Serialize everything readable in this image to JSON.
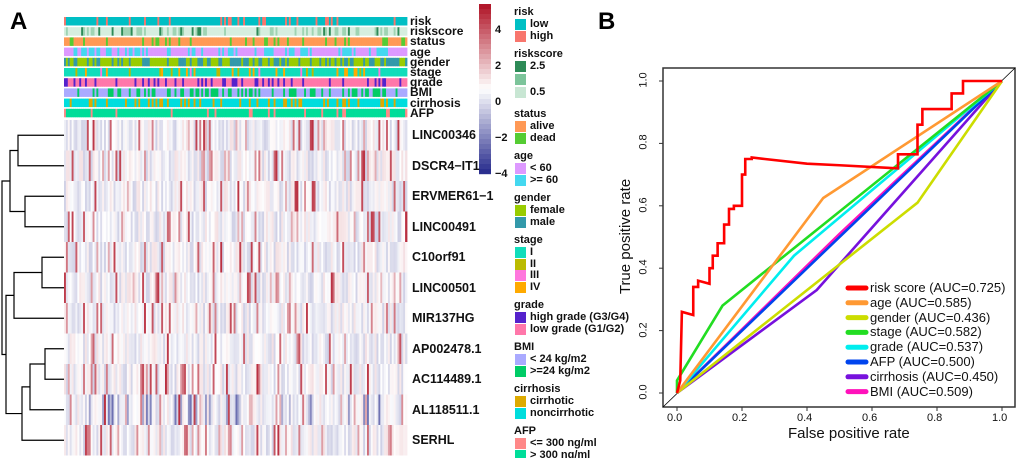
{
  "panels": {
    "a": "A",
    "b": "B"
  },
  "chart_data": [
    {
      "type": "heatmap",
      "annotation_tracks": [
        "risk",
        "riskscore",
        "status",
        "age",
        "gender",
        "stage",
        "grade",
        "BMI",
        "cirrhosis",
        "AFP"
      ],
      "rows": [
        "LINC00346",
        "DSCR4−IT1",
        "ERVMER61−1",
        "LINC00491",
        "C10orf91",
        "LINC00501",
        "MIR137HG",
        "AP002478.1",
        "AC114489.1",
        "AL118511.1",
        "SERHL"
      ],
      "color_scale": {
        "range": [
          -5,
          5
        ],
        "ticks": [
          "4",
          "2",
          "0",
          "−2",
          "−4"
        ],
        "low": "#2b2f8f",
        "mid": "#ffffff",
        "high": "#b2182b"
      },
      "legend": [
        {
          "title": "risk",
          "items": [
            {
              "label": "low",
              "color": "#00bfc4"
            },
            {
              "label": "high",
              "color": "#f8766d"
            }
          ]
        },
        {
          "title": "riskscore",
          "items": [
            {
              "label": "2.5",
              "color": "#2e8b57"
            },
            {
              "label": "",
              "color": "#7cc49a"
            },
            {
              "label": "0.5",
              "color": "#c8e6d3"
            }
          ]
        },
        {
          "title": "status",
          "items": [
            {
              "label": "alive",
              "color": "#ff9955"
            },
            {
              "label": "dead",
              "color": "#55cc33"
            }
          ]
        },
        {
          "title": "age",
          "items": [
            {
              "label": "< 60",
              "color": "#dd99ff"
            },
            {
              "label": ">= 60",
              "color": "#44d8f0"
            }
          ]
        },
        {
          "title": "gender",
          "items": [
            {
              "label": "female",
              "color": "#99cc00"
            },
            {
              "label": "male",
              "color": "#3399aa"
            }
          ]
        },
        {
          "title": "stage",
          "items": [
            {
              "label": "I",
              "color": "#11ddbb"
            },
            {
              "label": "II",
              "color": "#bbbb00"
            },
            {
              "label": "III",
              "color": "#ff77dd"
            },
            {
              "label": "IV",
              "color": "#ffaa00"
            }
          ]
        },
        {
          "title": "grade",
          "items": [
            {
              "label": "high grade (G3/G4)",
              "color": "#5522cc"
            },
            {
              "label": "low grade (G1/G2)",
              "color": "#ff77aa"
            }
          ]
        },
        {
          "title": "BMI",
          "items": [
            {
              "label": "< 24 kg/m2",
              "color": "#aaaaff"
            },
            {
              "label": ">=24 kg/m2",
              "color": "#00cc66"
            }
          ]
        },
        {
          "title": "cirrhosis",
          "items": [
            {
              "label": "cirrhotic",
              "color": "#ddaa00"
            },
            {
              "label": "noncirrhotic",
              "color": "#00dddd"
            }
          ]
        },
        {
          "title": "AFP",
          "items": [
            {
              "label": "<= 300 ng/ml",
              "color": "#ff8888"
            },
            {
              "label": "> 300 ng/ml",
              "color": "#00dd99"
            }
          ]
        }
      ]
    },
    {
      "type": "line",
      "xlabel": "False positive rate",
      "ylabel": "True positive rate",
      "xlim": [
        0,
        1
      ],
      "ylim": [
        0,
        1
      ],
      "xticks": [
        "0.0",
        "0.2",
        "0.4",
        "0.6",
        "0.8",
        "1.0"
      ],
      "yticks": [
        "0.0",
        "0.2",
        "0.4",
        "0.6",
        "0.8",
        "1.0"
      ],
      "legend_position": "bottom-right",
      "series": [
        {
          "name": "risk score (AUC=0.725)",
          "color": "#ff0000",
          "points": [
            [
              0,
              0
            ],
            [
              0.01,
              0.04
            ],
            [
              0.015,
              0.26
            ],
            [
              0.05,
              0.25
            ],
            [
              0.05,
              0.34
            ],
            [
              0.065,
              0.34
            ],
            [
              0.065,
              0.36
            ],
            [
              0.1,
              0.35
            ],
            [
              0.1,
              0.4
            ],
            [
              0.11,
              0.4
            ],
            [
              0.11,
              0.44
            ],
            [
              0.125,
              0.44
            ],
            [
              0.125,
              0.48
            ],
            [
              0.145,
              0.48
            ],
            [
              0.145,
              0.54
            ],
            [
              0.16,
              0.54
            ],
            [
              0.16,
              0.59
            ],
            [
              0.175,
              0.59
            ],
            [
              0.175,
              0.6
            ],
            [
              0.2,
              0.6
            ],
            [
              0.2,
              0.7
            ],
            [
              0.21,
              0.7
            ],
            [
              0.21,
              0.75
            ],
            [
              0.23,
              0.75
            ],
            [
              0.23,
              0.755
            ],
            [
              0.27,
              0.75
            ],
            [
              0.4,
              0.735
            ],
            [
              0.5,
              0.73
            ],
            [
              0.68,
              0.72
            ],
            [
              0.68,
              0.765
            ],
            [
              0.74,
              0.765
            ],
            [
              0.74,
              0.86
            ],
            [
              0.755,
              0.86
            ],
            [
              0.755,
              0.91
            ],
            [
              0.845,
              0.91
            ],
            [
              0.845,
              0.96
            ],
            [
              0.88,
              0.96
            ],
            [
              0.88,
              1.0
            ],
            [
              1,
              1
            ]
          ]
        },
        {
          "name": "age (AUC=0.585)",
          "color": "#ff9933",
          "points": [
            [
              0,
              0
            ],
            [
              0.45,
              0.625
            ],
            [
              1,
              1
            ]
          ]
        },
        {
          "name": "gender (AUC=0.436)",
          "color": "#ccdd00",
          "points": [
            [
              0,
              0
            ],
            [
              0.74,
              0.61
            ],
            [
              1,
              1
            ]
          ]
        },
        {
          "name": "stage (AUC=0.582)",
          "color": "#22dd22",
          "points": [
            [
              0,
              0
            ],
            [
              0,
              0.04
            ],
            [
              0.14,
              0.28
            ],
            [
              1,
              1
            ]
          ]
        },
        {
          "name": "grade (AUC=0.537)",
          "color": "#00eeee",
          "points": [
            [
              0,
              0
            ],
            [
              0.36,
              0.44
            ],
            [
              1,
              1
            ]
          ]
        },
        {
          "name": "AFP (AUC=0.500)",
          "color": "#0044ee",
          "points": [
            [
              0,
              0
            ],
            [
              1,
              1
            ]
          ]
        },
        {
          "name": "cirrhosis (AUC=0.450)",
          "color": "#7711dd",
          "points": [
            [
              0,
              0
            ],
            [
              0.43,
              0.33
            ],
            [
              1,
              1
            ]
          ]
        },
        {
          "name": "BMI (AUC=0.509)",
          "color": "#ff11bb",
          "points": [
            [
              0,
              0
            ],
            [
              0.5,
              0.51
            ],
            [
              1,
              1
            ]
          ]
        }
      ]
    }
  ]
}
